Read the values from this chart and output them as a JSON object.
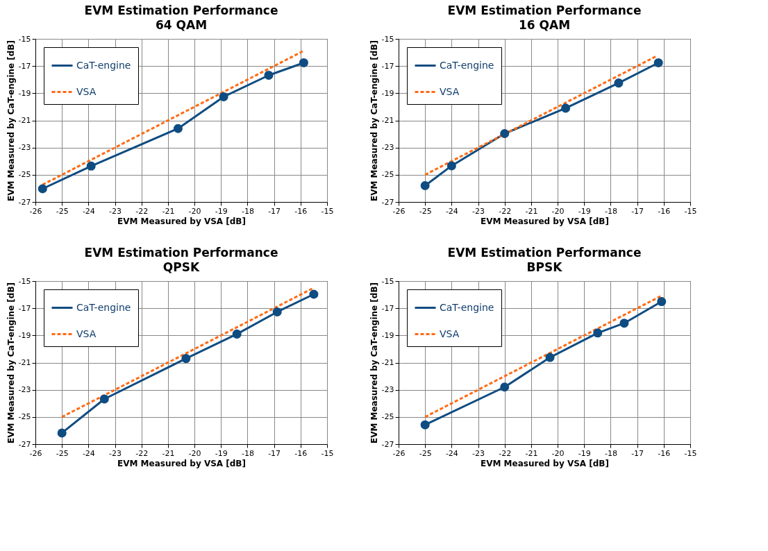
{
  "chart_data": [
    {
      "type": "line",
      "title": "EVM Estimation Performance",
      "subtitle": "64 QAM",
      "xlabel": "EVM Measured by VSA [dB]",
      "ylabel": "EVM Measured by CaT-engine [dB]",
      "xlim": [
        -26,
        -15
      ],
      "xticks": [
        -26,
        -25,
        -24,
        -23,
        -22,
        -21,
        -20,
        -19,
        -18,
        -17,
        -16,
        -15
      ],
      "ylim": [
        -27,
        -15
      ],
      "yticks": [
        -27,
        -25,
        -23,
        -21,
        -19,
        -17,
        -15
      ],
      "grid": true,
      "legend": "top left",
      "series": [
        {
          "name": "CaT-engine",
          "color": "#0f4c81",
          "marker": "circle",
          "line_style": "solid",
          "x": [
            -25.73,
            -23.9,
            -20.62,
            -18.9,
            -17.2,
            -15.88
          ],
          "values": [
            -26.03,
            -24.36,
            -21.6,
            -19.26,
            -17.68,
            -16.76
          ]
        },
        {
          "name": "VSA",
          "color": "#ff6a13",
          "marker": "none",
          "line_style": "dashed",
          "x": [
            -25.73,
            -15.88
          ],
          "values": [
            -25.73,
            -15.88
          ]
        }
      ]
    },
    {
      "type": "line",
      "title": "EVM Estimation Performance",
      "subtitle": "16 QAM",
      "xlabel": "EVM Measured by VSA [dB]",
      "ylabel": "EVM Measured by CaT-engine [dB]",
      "xlim": [
        -26,
        -15
      ],
      "xticks": [
        -26,
        -25,
        -24,
        -23,
        -22,
        -21,
        -20,
        -19,
        -18,
        -17,
        -16,
        -15
      ],
      "ylim": [
        -27,
        -15
      ],
      "yticks": [
        -27,
        -25,
        -23,
        -21,
        -19,
        -17,
        -15
      ],
      "grid": true,
      "legend": "top left",
      "series": [
        {
          "name": "CaT-engine",
          "color": "#0f4c81",
          "marker": "circle",
          "line_style": "solid",
          "x": [
            -25.0,
            -24.0,
            -22.0,
            -19.7,
            -17.7,
            -16.2
          ],
          "values": [
            -25.8,
            -24.34,
            -21.97,
            -20.1,
            -18.25,
            -16.76
          ]
        },
        {
          "name": "VSA",
          "color": "#ff6a13",
          "marker": "none",
          "line_style": "dashed",
          "x": [
            -25.0,
            -16.3
          ],
          "values": [
            -25.0,
            -16.3
          ]
        }
      ]
    },
    {
      "type": "line",
      "title": "EVM Estimation Performance",
      "subtitle": "QPSK",
      "xlabel": "EVM Measured by VSA [dB]",
      "ylabel": "EVM Measured by CaT-engine [dB]",
      "xlim": [
        -26,
        -15
      ],
      "xticks": [
        -26,
        -25,
        -24,
        -23,
        -22,
        -21,
        -20,
        -19,
        -18,
        -17,
        -16,
        -15
      ],
      "ylim": [
        -27,
        -15
      ],
      "yticks": [
        -27,
        -25,
        -23,
        -21,
        -19,
        -17,
        -15
      ],
      "grid": true,
      "legend": "top left",
      "series": [
        {
          "name": "CaT-engine",
          "color": "#0f4c81",
          "marker": "circle",
          "line_style": "solid",
          "x": [
            -25.0,
            -23.4,
            -20.32,
            -18.4,
            -16.88,
            -15.5
          ],
          "values": [
            -26.18,
            -23.68,
            -20.7,
            -18.9,
            -17.27,
            -15.97
          ]
        },
        {
          "name": "VSA",
          "color": "#ff6a13",
          "marker": "none",
          "line_style": "dashed",
          "x": [
            -25.0,
            -15.5
          ],
          "values": [
            -25.0,
            -15.5
          ]
        }
      ]
    },
    {
      "type": "line",
      "title": "EVM Estimation Performance",
      "subtitle": "BPSK",
      "xlabel": "EVM Measured by VSA [dB]",
      "ylabel": "EVM Measured by CaT-engine [dB]",
      "xlim": [
        -26,
        -15
      ],
      "xticks": [
        -26,
        -25,
        -24,
        -23,
        -22,
        -21,
        -20,
        -19,
        -18,
        -17,
        -16,
        -15
      ],
      "ylim": [
        -27,
        -15
      ],
      "yticks": [
        -27,
        -25,
        -23,
        -21,
        -19,
        -17,
        -15
      ],
      "grid": true,
      "legend": "top left",
      "series": [
        {
          "name": "CaT-engine",
          "color": "#0f4c81",
          "marker": "circle",
          "line_style": "solid",
          "x": [
            -25.0,
            -22.0,
            -20.29,
            -18.49,
            -17.49,
            -16.08
          ],
          "values": [
            -25.58,
            -22.8,
            -20.62,
            -18.82,
            -18.1,
            -16.51
          ]
        },
        {
          "name": "VSA",
          "color": "#ff6a13",
          "marker": "none",
          "line_style": "dashed",
          "x": [
            -25.0,
            -16.08
          ],
          "values": [
            -25.0,
            -16.08
          ]
        }
      ]
    }
  ]
}
